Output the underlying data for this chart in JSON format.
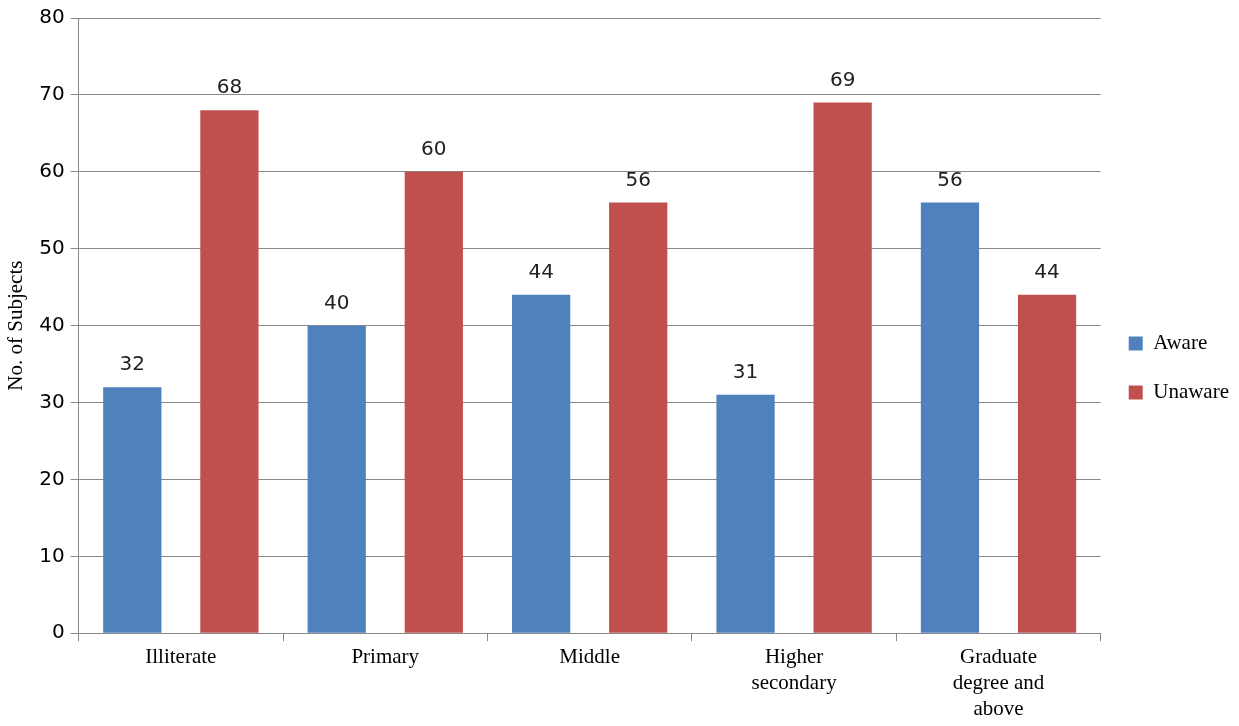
{
  "chart_data": {
    "type": "bar",
    "ylabel": "No. of Subjects",
    "categories": [
      "Illiterate",
      "Primary",
      "Middle",
      "Higher secondary",
      "Graduate degree and above"
    ],
    "series": [
      {
        "name": "Aware",
        "color": "#4f81bd",
        "values": [
          32,
          40,
          44,
          31,
          56
        ]
      },
      {
        "name": "Unaware",
        "color": "#c0504d",
        "values": [
          68,
          60,
          56,
          69,
          44
        ]
      }
    ],
    "ylim": [
      0,
      80
    ],
    "yticks": [
      0,
      10,
      20,
      30,
      40,
      50,
      60,
      70,
      80
    ],
    "grid": "y",
    "legend": "right",
    "data_labels": true
  }
}
